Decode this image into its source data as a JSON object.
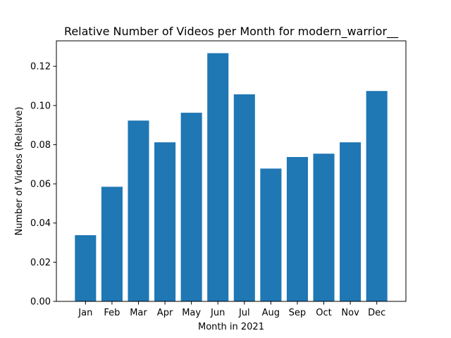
{
  "chart_data": {
    "type": "bar",
    "title": "Relative Number of Videos per Month for modern_warrior__",
    "xlabel": "Month in 2021",
    "ylabel": "Number of Videos (Relative)",
    "categories": [
      "Jan",
      "Feb",
      "Mar",
      "Apr",
      "May",
      "Jun",
      "Jul",
      "Aug",
      "Sep",
      "Oct",
      "Nov",
      "Dec"
    ],
    "values": [
      0.0338,
      0.0585,
      0.0923,
      0.0812,
      0.0963,
      0.1267,
      0.1057,
      0.0678,
      0.0737,
      0.0754,
      0.0812,
      0.1074
    ],
    "ylim": [
      0,
      0.133
    ],
    "yticks": [
      0.0,
      0.02,
      0.04,
      0.06,
      0.08,
      0.1,
      0.12
    ],
    "ytick_labels": [
      "0.00",
      "0.02",
      "0.04",
      "0.06",
      "0.08",
      "0.10",
      "0.12"
    ],
    "bar_color": "#1f77b4",
    "grid": false,
    "legend": "none"
  }
}
